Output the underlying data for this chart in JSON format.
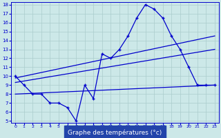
{
  "xlabel": "Graphe des températures (°c)",
  "bg_color": "#cce8e8",
  "grid_color": "#aacccc",
  "line_color": "#0000cc",
  "label_bg": "#2244aa",
  "label_fg": "#ffffff",
  "hours": [
    0,
    1,
    2,
    3,
    4,
    5,
    6,
    7,
    8,
    9,
    10,
    11,
    12,
    13,
    14,
    15,
    16,
    17,
    18,
    19,
    20,
    21,
    22,
    23
  ],
  "temp_main": [
    10,
    9,
    8,
    8,
    7,
    7,
    6.5,
    5,
    9,
    7.5,
    12.5,
    12,
    13,
    14.5,
    16.5,
    18,
    17.5,
    16.5,
    14.5,
    13,
    11,
    9,
    9,
    9
  ],
  "trend1_x": [
    0,
    23
  ],
  "trend1_y": [
    9.8,
    14.5
  ],
  "trend2_x": [
    0,
    23
  ],
  "trend2_y": [
    9.3,
    13.0
  ],
  "trend3_x": [
    0,
    23
  ],
  "trend3_y": [
    8.0,
    9.0
  ],
  "ylim_min": 5,
  "ylim_max": 18,
  "xlim_min": 0,
  "xlim_max": 23,
  "yticks": [
    5,
    6,
    7,
    8,
    9,
    10,
    11,
    12,
    13,
    14,
    15,
    16,
    17,
    18
  ],
  "xticks": [
    0,
    1,
    2,
    3,
    4,
    5,
    6,
    7,
    8,
    9,
    10,
    11,
    12,
    13,
    14,
    15,
    16,
    17,
    18,
    19,
    20,
    21,
    22,
    23
  ]
}
